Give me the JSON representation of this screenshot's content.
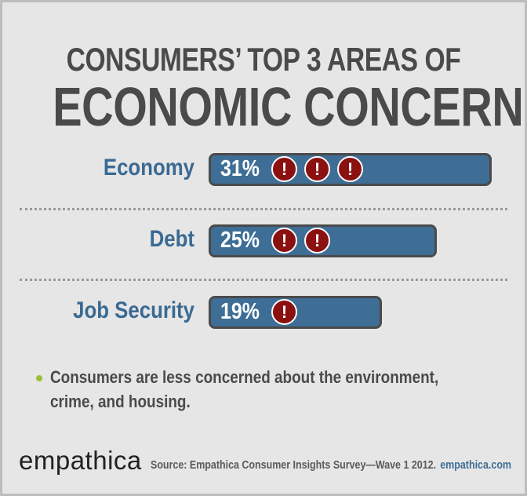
{
  "title": {
    "line1": "CONSUMERS’ TOP 3 AREAS OF",
    "line2": "ECONOMIC CONCERN"
  },
  "chart_data": {
    "type": "bar",
    "orientation": "horizontal",
    "categories": [
      "Economy",
      "Debt",
      "Job Security"
    ],
    "values": [
      31,
      25,
      19
    ],
    "value_labels": [
      "31%",
      "25%",
      "19%"
    ],
    "alert_icon_counts": [
      3,
      2,
      1
    ],
    "unit": "%",
    "bar_color": "#3e6e96",
    "label_color": "#3a6a92",
    "alert_color": "#8b1010"
  },
  "alert_glyph": "!",
  "note": "Consumers are less concerned about the environment, crime, and housing.",
  "logo": "empathica",
  "source": {
    "text": "Source: Empathica Consumer Insights Survey—Wave 1 2012.",
    "url": "empathica.com"
  },
  "colors": {
    "background": "#e6e6e6",
    "title": "#4a4a4a",
    "bullet": "#9cbf3c"
  }
}
